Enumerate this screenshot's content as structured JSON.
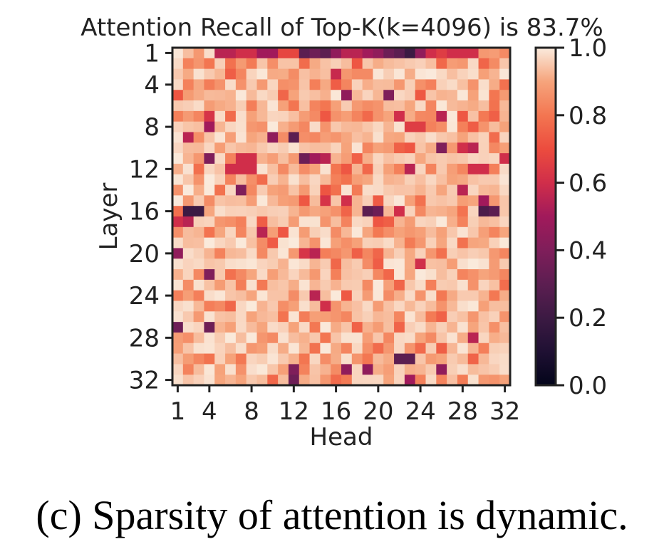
{
  "chart_data": {
    "type": "heatmap",
    "title": "Attention Recall of Top-K(k=4096) is 83.7%",
    "xlabel": "Head",
    "ylabel": "Layer",
    "x_ticks": [
      "1",
      "4",
      "8",
      "12",
      "16",
      "20",
      "24",
      "28",
      "32"
    ],
    "y_ticks": [
      "1",
      "4",
      "8",
      "12",
      "16",
      "20",
      "24",
      "28",
      "32"
    ],
    "colorbar_ticks": [
      "0.0",
      "0.2",
      "0.4",
      "0.6",
      "0.8",
      "1.0"
    ],
    "colorbar_range": [
      0,
      1
    ],
    "colormap": "rocket",
    "rows": 32,
    "cols": 32,
    "highlights": [
      {
        "layer": 1,
        "head": 5,
        "value": 0.55
      },
      {
        "layer": 1,
        "head": 6,
        "value": 0.55
      },
      {
        "layer": 1,
        "head": 7,
        "value": 0.6
      },
      {
        "layer": 1,
        "head": 8,
        "value": 0.6
      },
      {
        "layer": 1,
        "head": 9,
        "value": 0.5
      },
      {
        "layer": 1,
        "head": 10,
        "value": 0.5
      },
      {
        "layer": 1,
        "head": 11,
        "value": 0.68
      },
      {
        "layer": 1,
        "head": 12,
        "value": 0.68
      },
      {
        "layer": 1,
        "head": 13,
        "value": 0.3
      },
      {
        "layer": 1,
        "head": 14,
        "value": 0.35
      },
      {
        "layer": 1,
        "head": 15,
        "value": 0.3
      },
      {
        "layer": 1,
        "head": 16,
        "value": 0.45
      },
      {
        "layer": 1,
        "head": 17,
        "value": 0.55
      },
      {
        "layer": 1,
        "head": 18,
        "value": 0.55
      },
      {
        "layer": 1,
        "head": 19,
        "value": 0.5
      },
      {
        "layer": 1,
        "head": 20,
        "value": 0.45
      },
      {
        "layer": 1,
        "head": 21,
        "value": 0.35
      },
      {
        "layer": 1,
        "head": 22,
        "value": 0.3
      },
      {
        "layer": 1,
        "head": 23,
        "value": 0.2
      },
      {
        "layer": 1,
        "head": 24,
        "value": 0.45
      },
      {
        "layer": 1,
        "head": 25,
        "value": 0.6
      },
      {
        "layer": 1,
        "head": 26,
        "value": 0.65
      },
      {
        "layer": 1,
        "head": 27,
        "value": 0.6
      },
      {
        "layer": 1,
        "head": 28,
        "value": 0.6
      },
      {
        "layer": 1,
        "head": 29,
        "value": 0.6
      },
      {
        "layer": 3,
        "head": 16,
        "value": 0.58
      },
      {
        "layer": 5,
        "head": 17,
        "value": 0.45
      },
      {
        "layer": 5,
        "head": 21,
        "value": 0.4
      },
      {
        "layer": 7,
        "head": 4,
        "value": 0.62
      },
      {
        "layer": 7,
        "head": 22,
        "value": 0.6
      },
      {
        "layer": 7,
        "head": 26,
        "value": 0.55
      },
      {
        "layer": 8,
        "head": 4,
        "value": 0.5
      },
      {
        "layer": 8,
        "head": 23,
        "value": 0.65
      },
      {
        "layer": 8,
        "head": 24,
        "value": 0.65
      },
      {
        "layer": 9,
        "head": 2,
        "value": 0.55
      },
      {
        "layer": 9,
        "head": 10,
        "value": 0.45
      },
      {
        "layer": 9,
        "head": 12,
        "value": 0.3
      },
      {
        "layer": 10,
        "head": 26,
        "value": 0.4
      },
      {
        "layer": 10,
        "head": 28,
        "value": 0.6
      },
      {
        "layer": 10,
        "head": 29,
        "value": 0.55
      },
      {
        "layer": 11,
        "head": 4,
        "value": 0.4
      },
      {
        "layer": 11,
        "head": 7,
        "value": 0.6
      },
      {
        "layer": 11,
        "head": 8,
        "value": 0.6
      },
      {
        "layer": 11,
        "head": 13,
        "value": 0.35
      },
      {
        "layer": 11,
        "head": 14,
        "value": 0.5
      },
      {
        "layer": 11,
        "head": 15,
        "value": 0.55
      },
      {
        "layer": 11,
        "head": 32,
        "value": 0.6
      },
      {
        "layer": 12,
        "head": 6,
        "value": 0.6
      },
      {
        "layer": 12,
        "head": 7,
        "value": 0.6
      },
      {
        "layer": 12,
        "head": 8,
        "value": 0.6
      },
      {
        "layer": 12,
        "head": 23,
        "value": 0.55
      },
      {
        "layer": 12,
        "head": 29,
        "value": 0.6
      },
      {
        "layer": 12,
        "head": 30,
        "value": 0.6
      },
      {
        "layer": 14,
        "head": 7,
        "value": 0.4
      },
      {
        "layer": 14,
        "head": 28,
        "value": 0.55
      },
      {
        "layer": 15,
        "head": 15,
        "value": 0.62
      },
      {
        "layer": 15,
        "head": 17,
        "value": 0.6
      },
      {
        "layer": 15,
        "head": 30,
        "value": 0.5
      },
      {
        "layer": 16,
        "head": 2,
        "value": 0.2
      },
      {
        "layer": 16,
        "head": 3,
        "value": 0.2
      },
      {
        "layer": 16,
        "head": 19,
        "value": 0.3
      },
      {
        "layer": 16,
        "head": 20,
        "value": 0.35
      },
      {
        "layer": 16,
        "head": 22,
        "value": 0.6
      },
      {
        "layer": 16,
        "head": 30,
        "value": 0.25
      },
      {
        "layer": 16,
        "head": 31,
        "value": 0.3
      },
      {
        "layer": 17,
        "head": 1,
        "value": 0.6
      },
      {
        "layer": 17,
        "head": 2,
        "value": 0.55
      },
      {
        "layer": 18,
        "head": 9,
        "value": 0.55
      },
      {
        "layer": 20,
        "head": 1,
        "value": 0.45
      },
      {
        "layer": 20,
        "head": 13,
        "value": 0.62
      },
      {
        "layer": 20,
        "head": 14,
        "value": 0.55
      },
      {
        "layer": 21,
        "head": 24,
        "value": 0.6
      },
      {
        "layer": 22,
        "head": 4,
        "value": 0.4
      },
      {
        "layer": 24,
        "head": 14,
        "value": 0.55
      },
      {
        "layer": 25,
        "head": 15,
        "value": 0.6
      },
      {
        "layer": 27,
        "head": 1,
        "value": 0.35
      },
      {
        "layer": 27,
        "head": 4,
        "value": 0.35
      },
      {
        "layer": 28,
        "head": 29,
        "value": 0.55
      },
      {
        "layer": 30,
        "head": 22,
        "value": 0.3
      },
      {
        "layer": 30,
        "head": 23,
        "value": 0.3
      },
      {
        "layer": 31,
        "head": 12,
        "value": 0.4
      },
      {
        "layer": 31,
        "head": 17,
        "value": 0.45
      },
      {
        "layer": 31,
        "head": 19,
        "value": 0.45
      },
      {
        "layer": 31,
        "head": 26,
        "value": 0.45
      },
      {
        "layer": 32,
        "head": 12,
        "value": 0.35
      },
      {
        "layer": 32,
        "head": 23,
        "value": 0.5
      }
    ]
  },
  "caption": "(c) Sparsity of attention is dynamic."
}
